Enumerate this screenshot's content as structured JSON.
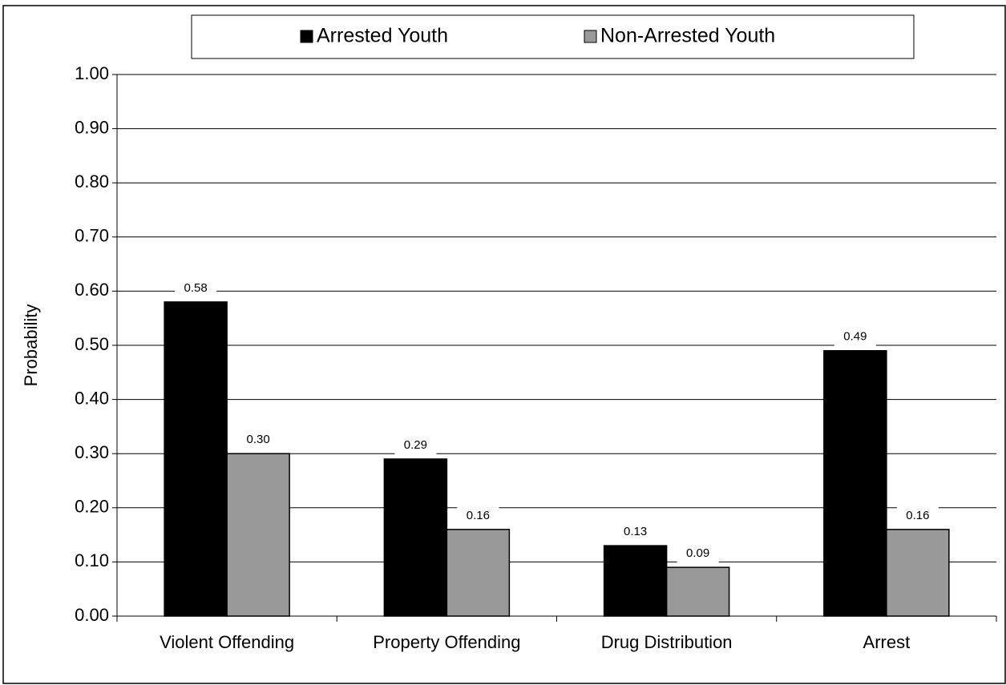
{
  "chart_data": {
    "type": "bar",
    "y_label": "Probability",
    "categories": [
      "Violent Offending",
      "Property Offending",
      "Drug Distribution",
      "Arrest"
    ],
    "series": [
      {
        "name": "Arrested Youth",
        "color": "#000000",
        "values": [
          0.58,
          0.29,
          0.13,
          0.49
        ],
        "value_labels": [
          "0.58",
          "0.29",
          "0.13",
          "0.49"
        ]
      },
      {
        "name": "Non-Arrested Youth",
        "color": "#999999",
        "values": [
          0.3,
          0.16,
          0.09,
          0.16
        ],
        "value_labels": [
          "0.30",
          "0.16",
          "0.09",
          "0.16"
        ]
      }
    ],
    "ylim": [
      0,
      1
    ],
    "yticks": [
      {
        "value": 0,
        "label": "0.00"
      },
      {
        "value": 0.1,
        "label": "0.10"
      },
      {
        "value": 0.2,
        "label": "0.20"
      },
      {
        "value": 0.3,
        "label": "0.30"
      },
      {
        "value": 0.4,
        "label": "0.40"
      },
      {
        "value": 0.5,
        "label": "0.50"
      },
      {
        "value": 0.6,
        "label": "0.60"
      },
      {
        "value": 0.7,
        "label": "0.70"
      },
      {
        "value": 0.8,
        "label": "0.80"
      },
      {
        "value": 0.9,
        "label": "0.90"
      },
      {
        "value": 1,
        "label": "1.00"
      }
    ],
    "grid": true,
    "legend": "top"
  }
}
